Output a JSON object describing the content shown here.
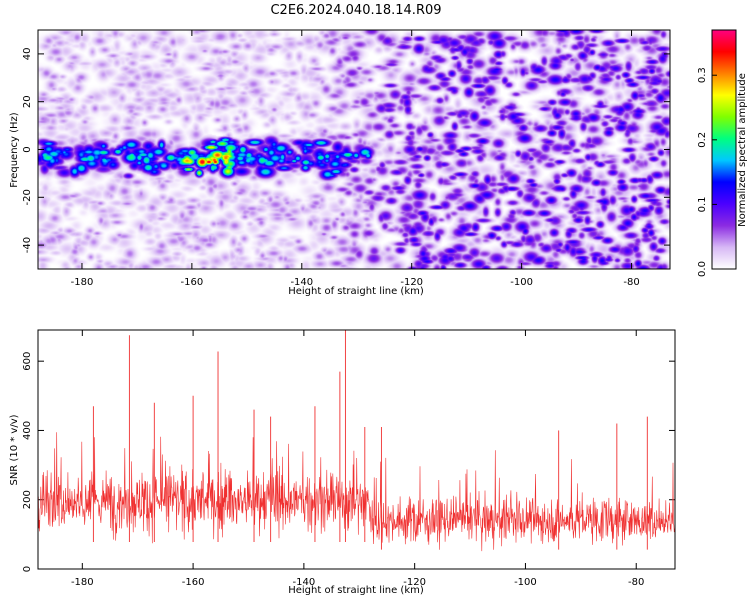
{
  "title": "C2E6.2024.040.18.14.R09",
  "chart_data": [
    {
      "type": "heatmap",
      "xlabel": "Height of straight line (km)",
      "ylabel": "Frequency (Hz)",
      "xlim": [
        -188,
        -73
      ],
      "ylim": [
        -50,
        50
      ],
      "xticks": [
        -180,
        -160,
        -140,
        -120,
        -100,
        -80
      ],
      "yticks": [
        -40,
        -20,
        0,
        20,
        40
      ],
      "colorbar": {
        "label": "Normalized spectral amplitude",
        "range": [
          0.0,
          0.37
        ],
        "ticks": [
          0.0,
          0.1,
          0.2,
          0.3
        ],
        "tick_labels": [
          "0.0",
          "0.1",
          "0.2",
          "0.3"
        ],
        "colors": [
          "#ffffff",
          "#d7b8f5",
          "#8b2be2",
          "#4b00ff",
          "#0000ff",
          "#00c8ff",
          "#00ff80",
          "#80ff00",
          "#ffff00",
          "#ff8000",
          "#ff0000",
          "#ff0080"
        ]
      },
      "signal_band": {
        "x_range": [
          -188,
          -128
        ],
        "frequency_center_hz": -3,
        "frequency_width_hz": 12,
        "peak_x": -157,
        "peak_amplitude": 0.35
      },
      "background_amplitude_left": 0.04,
      "background_amplitude_right": 0.1
    },
    {
      "type": "line",
      "xlabel": "Height of straight line (km)",
      "ylabel": "SNR (10 * v/v)",
      "xlim": [
        -188,
        -73
      ],
      "ylim": [
        0,
        690
      ],
      "xticks": [
        -180,
        -160,
        -140,
        -120,
        -100,
        -80
      ],
      "yticks": [
        0,
        200,
        400,
        600
      ],
      "series_color": "#f03030",
      "mean_left": 195,
      "mean_right": 140,
      "transition_x": -128,
      "peaks": [
        {
          "x": -171.5,
          "y": 675
        },
        {
          "x": -155.5,
          "y": 628
        },
        {
          "x": -132.5,
          "y": 690
        },
        {
          "x": -133.5,
          "y": 570
        },
        {
          "x": -160,
          "y": 500
        },
        {
          "x": -178,
          "y": 470
        },
        {
          "x": -167,
          "y": 480
        },
        {
          "x": -149,
          "y": 460
        },
        {
          "x": -146,
          "y": 440
        },
        {
          "x": -138,
          "y": 470
        },
        {
          "x": -129,
          "y": 410
        },
        {
          "x": -126,
          "y": 410
        },
        {
          "x": -94,
          "y": 400
        },
        {
          "x": -83.5,
          "y": 420
        },
        {
          "x": -78,
          "y": 440
        }
      ]
    }
  ]
}
